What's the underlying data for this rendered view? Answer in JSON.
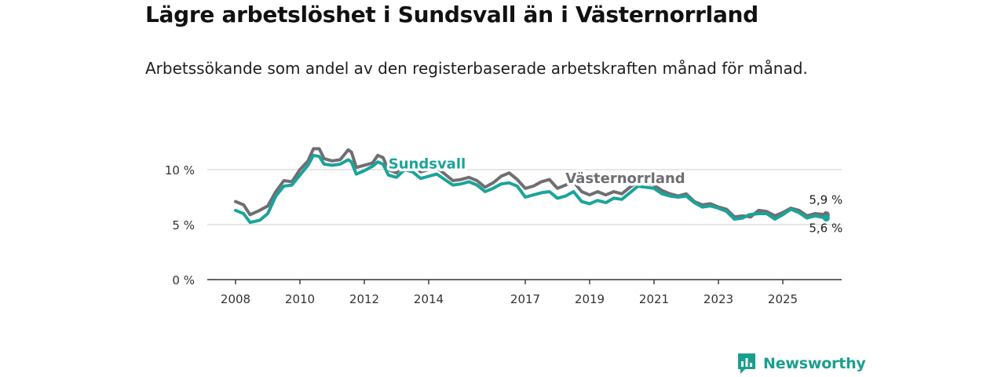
{
  "header": {
    "title": "Lägre arbetslöshet i Sundsvall än i Västernorrland",
    "subtitle": "Arbetssökande som andel av den registerbaserade arbetskraften månad för månad."
  },
  "brand": {
    "name": "Newsworthy",
    "icon": "newsworthy-chart-logo-icon",
    "color": "#1b9e8f"
  },
  "chart_data": {
    "type": "line",
    "title": "Lägre arbetslöshet i Sundsvall än i Västernorrland",
    "xlabel": "",
    "ylabel": "",
    "xlim": [
      2008,
      2026.45
    ],
    "ylim": [
      0,
      12
    ],
    "grid": true,
    "y_ticks": [
      {
        "value": 0,
        "label": "0 %"
      },
      {
        "value": 5,
        "label": "5 %"
      },
      {
        "value": 10,
        "label": "10 %"
      }
    ],
    "x_ticks": [
      {
        "value": 2008,
        "label": "2008"
      },
      {
        "value": 2010,
        "label": "2010"
      },
      {
        "value": 2012,
        "label": "2012"
      },
      {
        "value": 2014,
        "label": "2014"
      },
      {
        "value": 2017,
        "label": "2017"
      },
      {
        "value": 2019,
        "label": "2019"
      },
      {
        "value": 2021,
        "label": "2021"
      },
      {
        "value": 2023,
        "label": "2023"
      },
      {
        "value": 2025,
        "label": "2025"
      }
    ],
    "series": [
      {
        "name": "Västernorrland",
        "label": "Västernorrland",
        "color": "#6f6f73",
        "label_at": [
          2018.25,
          8.8
        ],
        "end_label": "5,9 %",
        "points": [
          [
            2008.0,
            7.1
          ],
          [
            2008.25,
            6.8
          ],
          [
            2008.45,
            5.9
          ],
          [
            2008.75,
            6.3
          ],
          [
            2009.0,
            6.7
          ],
          [
            2009.25,
            8.0
          ],
          [
            2009.5,
            9.0
          ],
          [
            2009.75,
            8.9
          ],
          [
            2010.0,
            10.0
          ],
          [
            2010.25,
            10.8
          ],
          [
            2010.42,
            11.9
          ],
          [
            2010.6,
            11.9
          ],
          [
            2010.75,
            11.0
          ],
          [
            2011.0,
            10.8
          ],
          [
            2011.25,
            10.9
          ],
          [
            2011.5,
            11.8
          ],
          [
            2011.6,
            11.6
          ],
          [
            2011.75,
            10.2
          ],
          [
            2012.0,
            10.4
          ],
          [
            2012.25,
            10.6
          ],
          [
            2012.42,
            11.3
          ],
          [
            2012.58,
            11.1
          ],
          [
            2012.75,
            10.0
          ],
          [
            2013.0,
            9.7
          ],
          [
            2013.25,
            10.6
          ],
          [
            2013.5,
            10.4
          ],
          [
            2013.75,
            9.8
          ],
          [
            2014.0,
            10.0
          ],
          [
            2014.25,
            10.2
          ],
          [
            2014.5,
            9.6
          ],
          [
            2014.75,
            9.0
          ],
          [
            2015.0,
            9.1
          ],
          [
            2015.25,
            9.3
          ],
          [
            2015.5,
            9.0
          ],
          [
            2015.75,
            8.4
          ],
          [
            2016.0,
            8.8
          ],
          [
            2016.25,
            9.4
          ],
          [
            2016.5,
            9.7
          ],
          [
            2016.75,
            9.1
          ],
          [
            2017.0,
            8.3
          ],
          [
            2017.25,
            8.5
          ],
          [
            2017.5,
            8.9
          ],
          [
            2017.75,
            9.1
          ],
          [
            2018.0,
            8.3
          ],
          [
            2018.25,
            8.6
          ],
          [
            2018.5,
            8.9
          ],
          [
            2018.75,
            8.0
          ],
          [
            2019.0,
            7.7
          ],
          [
            2019.25,
            8.0
          ],
          [
            2019.5,
            7.7
          ],
          [
            2019.75,
            8.0
          ],
          [
            2020.0,
            7.8
          ],
          [
            2020.25,
            8.4
          ],
          [
            2020.5,
            8.9
          ],
          [
            2020.75,
            8.8
          ],
          [
            2021.0,
            8.6
          ],
          [
            2021.25,
            8.1
          ],
          [
            2021.5,
            7.8
          ],
          [
            2021.75,
            7.6
          ],
          [
            2022.0,
            7.8
          ],
          [
            2022.25,
            7.1
          ],
          [
            2022.5,
            6.8
          ],
          [
            2022.75,
            6.9
          ],
          [
            2023.0,
            6.6
          ],
          [
            2023.25,
            6.4
          ],
          [
            2023.5,
            5.7
          ],
          [
            2023.75,
            5.8
          ],
          [
            2024.0,
            5.7
          ],
          [
            2024.25,
            6.3
          ],
          [
            2024.5,
            6.2
          ],
          [
            2024.75,
            5.8
          ],
          [
            2025.0,
            6.1
          ],
          [
            2025.25,
            6.5
          ],
          [
            2025.5,
            6.3
          ],
          [
            2025.75,
            5.8
          ],
          [
            2026.0,
            6.0
          ],
          [
            2026.35,
            5.9
          ]
        ]
      },
      {
        "name": "Sundsvall",
        "label": "Sundsvall",
        "color": "#1aa49a",
        "label_at": [
          2012.75,
          10.1
        ],
        "end_label": "5,6 %",
        "points": [
          [
            2008.0,
            6.3
          ],
          [
            2008.25,
            6.0
          ],
          [
            2008.45,
            5.2
          ],
          [
            2008.75,
            5.4
          ],
          [
            2009.0,
            6.0
          ],
          [
            2009.25,
            7.6
          ],
          [
            2009.5,
            8.5
          ],
          [
            2009.75,
            8.6
          ],
          [
            2010.0,
            9.5
          ],
          [
            2010.25,
            10.4
          ],
          [
            2010.42,
            11.3
          ],
          [
            2010.6,
            11.2
          ],
          [
            2010.75,
            10.5
          ],
          [
            2011.0,
            10.4
          ],
          [
            2011.25,
            10.5
          ],
          [
            2011.5,
            10.9
          ],
          [
            2011.6,
            10.7
          ],
          [
            2011.75,
            9.6
          ],
          [
            2012.0,
            9.9
          ],
          [
            2012.25,
            10.3
          ],
          [
            2012.42,
            10.7
          ],
          [
            2012.58,
            10.5
          ],
          [
            2012.75,
            9.5
          ],
          [
            2013.0,
            9.3
          ],
          [
            2013.25,
            10.0
          ],
          [
            2013.5,
            9.8
          ],
          [
            2013.75,
            9.2
          ],
          [
            2014.0,
            9.4
          ],
          [
            2014.25,
            9.6
          ],
          [
            2014.5,
            9.1
          ],
          [
            2014.75,
            8.6
          ],
          [
            2015.0,
            8.7
          ],
          [
            2015.25,
            8.9
          ],
          [
            2015.5,
            8.6
          ],
          [
            2015.75,
            8.0
          ],
          [
            2016.0,
            8.3
          ],
          [
            2016.25,
            8.7
          ],
          [
            2016.5,
            8.8
          ],
          [
            2016.75,
            8.5
          ],
          [
            2017.0,
            7.5
          ],
          [
            2017.25,
            7.7
          ],
          [
            2017.5,
            7.9
          ],
          [
            2017.75,
            8.0
          ],
          [
            2018.0,
            7.4
          ],
          [
            2018.25,
            7.6
          ],
          [
            2018.5,
            8.0
          ],
          [
            2018.75,
            7.1
          ],
          [
            2019.0,
            6.9
          ],
          [
            2019.25,
            7.2
          ],
          [
            2019.5,
            7.0
          ],
          [
            2019.75,
            7.4
          ],
          [
            2020.0,
            7.3
          ],
          [
            2020.25,
            7.9
          ],
          [
            2020.5,
            8.5
          ],
          [
            2020.75,
            8.4
          ],
          [
            2021.0,
            8.3
          ],
          [
            2021.25,
            7.8
          ],
          [
            2021.5,
            7.6
          ],
          [
            2021.75,
            7.5
          ],
          [
            2022.0,
            7.6
          ],
          [
            2022.25,
            7.0
          ],
          [
            2022.5,
            6.6
          ],
          [
            2022.75,
            6.7
          ],
          [
            2023.0,
            6.5
          ],
          [
            2023.25,
            6.2
          ],
          [
            2023.5,
            5.5
          ],
          [
            2023.75,
            5.6
          ],
          [
            2023.95,
            5.9
          ],
          [
            2024.25,
            6.0
          ],
          [
            2024.5,
            6.0
          ],
          [
            2024.75,
            5.5
          ],
          [
            2025.0,
            5.9
          ],
          [
            2025.25,
            6.4
          ],
          [
            2025.5,
            6.1
          ],
          [
            2025.75,
            5.6
          ],
          [
            2026.0,
            5.8
          ],
          [
            2026.35,
            5.6
          ]
        ]
      }
    ]
  }
}
